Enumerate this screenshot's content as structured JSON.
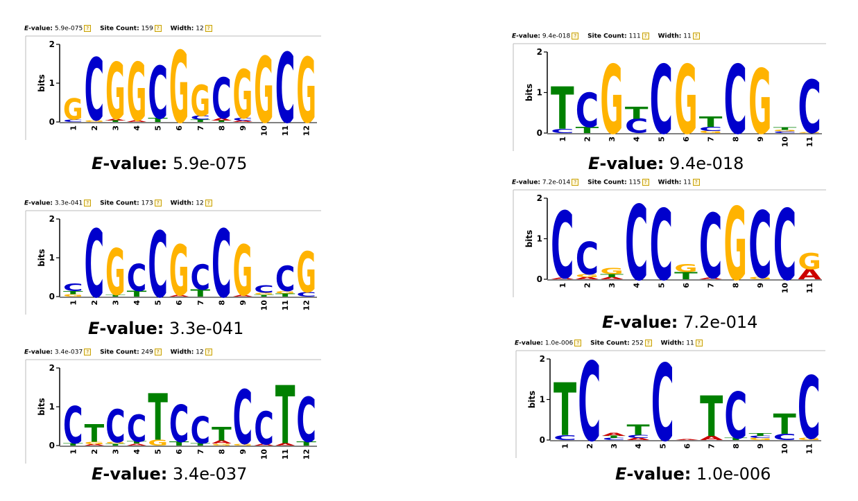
{
  "labels": {
    "evalue_prefix": "E",
    "evalue_suffix": "-value:",
    "site_count": "Site Count:",
    "width": "Width:",
    "help_glyph": "?",
    "y_axis": "bits",
    "y_ticks": [
      "0",
      "1",
      "2"
    ]
  },
  "colors": {
    "A": "#cc0000",
    "C": "#0000cc",
    "G": "#ffb300",
    "T": "#008000"
  },
  "motifs": [
    {
      "evalue": "5.9e-075",
      "site_count": "159",
      "width": "12",
      "columns": [
        [
          [
            "C",
            0.06
          ],
          [
            "G",
            0.55
          ]
        ],
        [
          [
            "G",
            0.05
          ],
          [
            "C",
            1.6
          ]
        ],
        [
          [
            "T",
            0.04
          ],
          [
            "A",
            0.05
          ],
          [
            "G",
            1.45
          ]
        ],
        [
          [
            "A",
            0.04
          ],
          [
            "G",
            1.5
          ]
        ],
        [
          [
            "T",
            0.1
          ],
          [
            "C",
            1.35
          ]
        ],
        [
          [
            "G",
            1.85
          ]
        ],
        [
          [
            "T",
            0.06
          ],
          [
            "C",
            0.1
          ],
          [
            "G",
            0.8
          ]
        ],
        [
          [
            "T",
            0.04
          ],
          [
            "A",
            0.06
          ],
          [
            "C",
            1.05
          ]
        ],
        [
          [
            "A",
            0.04
          ],
          [
            "C",
            0.07
          ],
          [
            "G",
            1.25
          ]
        ],
        [
          [
            "G",
            1.7
          ]
        ],
        [
          [
            "C",
            1.8
          ]
        ],
        [
          [
            "G",
            1.68
          ]
        ]
      ]
    },
    {
      "evalue": "9.4e-018",
      "site_count": "111",
      "width": "11",
      "columns": [
        [
          [
            "C",
            0.1
          ],
          [
            "T",
            1.05
          ]
        ],
        [
          [
            "T",
            0.15
          ],
          [
            "C",
            0.85
          ]
        ],
        [
          [
            "G",
            1.7
          ]
        ],
        [
          [
            "C",
            0.35
          ],
          [
            "T",
            0.3
          ]
        ],
        [
          [
            "C",
            1.7
          ]
        ],
        [
          [
            "G",
            1.7
          ]
        ],
        [
          [
            "G",
            0.05
          ],
          [
            "C",
            0.1
          ],
          [
            "T",
            0.25
          ]
        ],
        [
          [
            "C",
            1.7
          ]
        ],
        [
          [
            "G",
            1.6
          ]
        ],
        [
          [
            "C",
            0.04
          ],
          [
            "G",
            0.04
          ],
          [
            "T",
            0.06
          ]
        ],
        [
          [
            "G",
            0.02
          ],
          [
            "C",
            1.3
          ]
        ]
      ]
    },
    {
      "evalue": "3.3e-041",
      "site_count": "173",
      "width": "12",
      "columns": [
        [
          [
            "G",
            0.06
          ],
          [
            "T",
            0.08
          ],
          [
            "C",
            0.2
          ]
        ],
        [
          [
            "C",
            1.75
          ]
        ],
        [
          [
            "T",
            0.05
          ],
          [
            "G",
            1.2
          ]
        ],
        [
          [
            "T",
            0.15
          ],
          [
            "C",
            0.7
          ]
        ],
        [
          [
            "C",
            1.7
          ]
        ],
        [
          [
            "A",
            0.04
          ],
          [
            "G",
            1.3
          ]
        ],
        [
          [
            "T",
            0.18
          ],
          [
            "C",
            0.65
          ]
        ],
        [
          [
            "C",
            1.75
          ]
        ],
        [
          [
            "A",
            0.04
          ],
          [
            "G",
            1.3
          ]
        ],
        [
          [
            "T",
            0.05
          ],
          [
            "G",
            0.05
          ],
          [
            "C",
            0.2
          ]
        ],
        [
          [
            "T",
            0.08
          ],
          [
            "G",
            0.06
          ],
          [
            "C",
            0.65
          ]
        ],
        [
          [
            "C",
            0.12
          ],
          [
            "G",
            1.05
          ]
        ]
      ]
    },
    {
      "evalue": "7.2e-014",
      "site_count": "115",
      "width": "11",
      "columns": [
        [
          [
            "A",
            0.04
          ],
          [
            "C",
            1.65
          ]
        ],
        [
          [
            "A",
            0.05
          ],
          [
            "G",
            0.08
          ],
          [
            "C",
            0.8
          ]
        ],
        [
          [
            "A",
            0.05
          ],
          [
            "T",
            0.08
          ],
          [
            "G",
            0.15
          ]
        ],
        [
          [
            "C",
            1.85
          ]
        ],
        [
          [
            "C",
            1.75
          ]
        ],
        [
          [
            "T",
            0.18
          ],
          [
            "G",
            0.2
          ]
        ],
        [
          [
            "A",
            0.04
          ],
          [
            "C",
            1.6
          ]
        ],
        [
          [
            "G",
            1.8
          ]
        ],
        [
          [
            "G",
            0.05
          ],
          [
            "C",
            1.65
          ]
        ],
        [
          [
            "C",
            1.75
          ]
        ],
        [
          [
            "A",
            0.25
          ],
          [
            "G",
            0.4
          ]
        ]
      ]
    },
    {
      "evalue": "3.4e-037",
      "site_count": "249",
      "width": "12",
      "columns": [
        [
          [
            "T",
            0.06
          ],
          [
            "C",
            0.95
          ]
        ],
        [
          [
            "A",
            0.04
          ],
          [
            "G",
            0.06
          ],
          [
            "T",
            0.45
          ]
        ],
        [
          [
            "T",
            0.05
          ],
          [
            "G",
            0.04
          ],
          [
            "C",
            0.85
          ]
        ],
        [
          [
            "A",
            0.05
          ],
          [
            "T",
            0.06
          ],
          [
            "C",
            0.7
          ]
        ],
        [
          [
            "G",
            0.15
          ],
          [
            "T",
            1.2
          ]
        ],
        [
          [
            "T",
            0.1
          ],
          [
            "C",
            0.95
          ]
        ],
        [
          [
            "T",
            0.06
          ],
          [
            "C",
            0.7
          ]
        ],
        [
          [
            "G",
            0.05
          ],
          [
            "A",
            0.08
          ],
          [
            "T",
            0.35
          ]
        ],
        [
          [
            "G",
            0.05
          ],
          [
            "C",
            1.4
          ]
        ],
        [
          [
            "A",
            0.04
          ],
          [
            "C",
            0.85
          ]
        ],
        [
          [
            "A",
            0.06
          ],
          [
            "T",
            1.5
          ]
        ],
        [
          [
            "T",
            0.1
          ],
          [
            "C",
            1.15
          ]
        ]
      ]
    },
    {
      "evalue": "1.0e-006",
      "site_count": "252",
      "width": "11",
      "columns": [
        [
          [
            "C",
            0.12
          ],
          [
            "T",
            1.3
          ]
        ],
        [
          [
            "C",
            1.95
          ]
        ],
        [
          [
            "C",
            0.05
          ],
          [
            "T",
            0.05
          ],
          [
            "A",
            0.08
          ]
        ],
        [
          [
            "A",
            0.05
          ],
          [
            "C",
            0.08
          ],
          [
            "T",
            0.25
          ]
        ],
        [
          [
            "C",
            1.9
          ]
        ],
        [
          [
            "A",
            0.02
          ]
        ],
        [
          [
            "A",
            0.1
          ],
          [
            "T",
            1.0
          ]
        ],
        [
          [
            "T",
            0.05
          ],
          [
            "C",
            1.15
          ]
        ],
        [
          [
            "G",
            0.05
          ],
          [
            "C",
            0.05
          ],
          [
            "T",
            0.06
          ]
        ],
        [
          [
            "C",
            0.15
          ],
          [
            "T",
            0.5
          ]
        ],
        [
          [
            "G",
            0.05
          ],
          [
            "C",
            1.55
          ]
        ]
      ]
    }
  ]
}
